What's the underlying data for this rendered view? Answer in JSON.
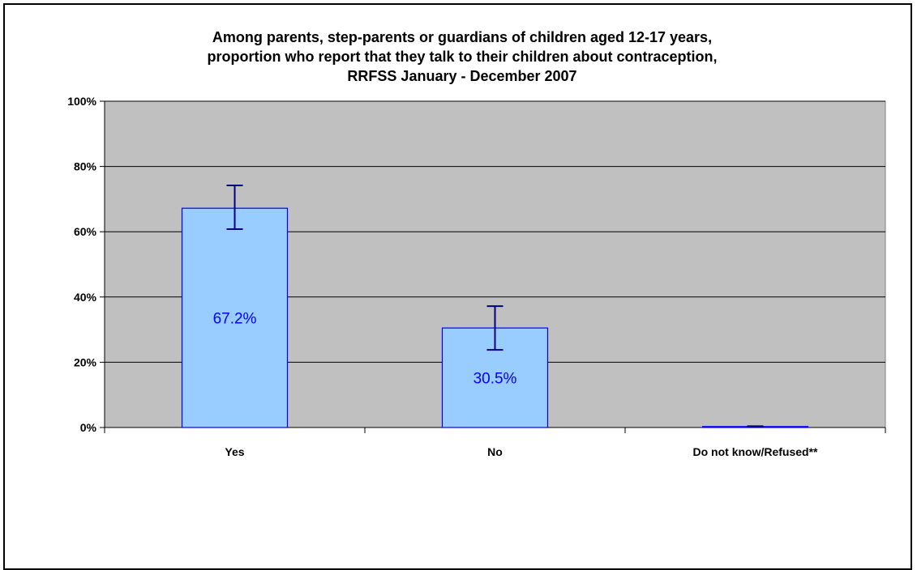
{
  "chart_data": {
    "type": "bar",
    "title_lines": [
      "Among parents, step-parents or guardians of children aged 12-17 years,",
      "proportion who report that they talk to their children about contraception,",
      "RRFSS January - December 2007"
    ],
    "categories": [
      "Yes",
      "No",
      "Do not know/Refused**"
    ],
    "values": [
      67.2,
      30.5,
      0.3
    ],
    "data_labels": [
      "67.2%",
      "30.5%",
      ""
    ],
    "error_bars": [
      {
        "low": 60.8,
        "high": 74.2
      },
      {
        "low": 23.8,
        "high": 37.2
      },
      {
        "low": 0.2,
        "high": 0.4
      }
    ],
    "y_ticks": [
      "0%",
      "20%",
      "40%",
      "60%",
      "80%",
      "100%"
    ],
    "ylim": [
      0,
      100
    ],
    "xlabel": "",
    "ylabel": "",
    "grid": true,
    "legend": "none",
    "colors": {
      "plot_background": "#c0c0c0",
      "bar_fill": "#99ccff",
      "bar_border": "#0000ff",
      "error_bar": "#000080",
      "data_label": "#0000ff",
      "gridline": "#000000"
    }
  }
}
